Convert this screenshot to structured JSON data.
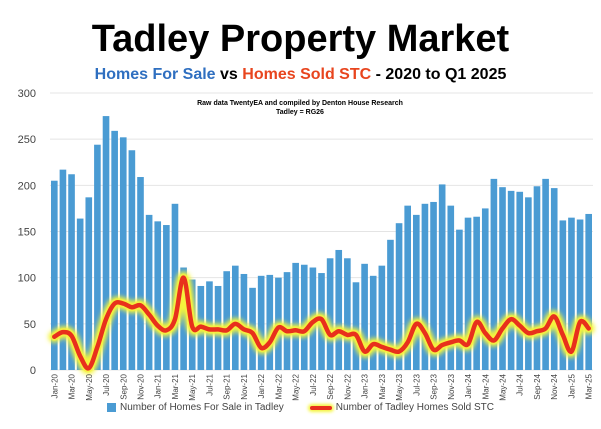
{
  "chart_data": {
    "type": "bar",
    "title": "Tadley Property Market",
    "subtitle": {
      "part1": "Homes For Sale",
      "part2": " vs ",
      "part3": "Homes Sold STC",
      "part4": " - 2020 to Q1 2025"
    },
    "note": [
      "Raw data TwentyEA and compiled by Denton House Research",
      "Tadley = RG26"
    ],
    "ylim": [
      0,
      300
    ],
    "yticks": [
      0,
      50,
      100,
      150,
      200,
      250,
      300
    ],
    "xticks": [
      "Jan-20",
      "Mar-20",
      "May-20",
      "Jul-20",
      "Sep-20",
      "Nov-20",
      "Jan-21",
      "Mar-21",
      "May-21",
      "Jul-21",
      "Sep-21",
      "Nov-21",
      "Jan-22",
      "Mar-22",
      "May-22",
      "Jul-22",
      "Sep-22",
      "Nov-22",
      "Jan-23",
      "Mar-23",
      "May-23",
      "Jul-23",
      "Sep-23",
      "Nov-23",
      "Jan-24",
      "Mar-24",
      "May-24",
      "Jul-24",
      "Sep-24",
      "Nov-24",
      "Jan-25",
      "Mar-25"
    ],
    "legend_position": "bottom",
    "series": [
      {
        "name": "Number of Homes For Sale in Tadley",
        "type": "bar",
        "color": "#4a9bd3",
        "values": [
          205,
          217,
          212,
          164,
          187,
          244,
          275,
          259,
          252,
          238,
          209,
          168,
          161,
          157,
          180,
          111,
          98,
          91,
          96,
          91,
          107,
          113,
          104,
          89,
          102,
          103,
          100,
          106,
          116,
          114,
          111,
          105,
          121,
          130,
          121,
          95,
          115,
          102,
          113,
          141,
          159,
          178,
          168,
          180,
          182,
          201,
          178,
          152,
          165,
          166,
          175,
          207,
          198,
          194,
          193,
          187,
          199,
          207,
          197,
          162,
          165,
          163,
          169
        ]
      },
      {
        "name": "Number of Tadley Homes Sold STC",
        "type": "line",
        "color": "#e8301c",
        "values": [
          36,
          41,
          37,
          15,
          2,
          25,
          55,
          72,
          72,
          68,
          70,
          60,
          48,
          43,
          55,
          100,
          47,
          47,
          44,
          44,
          43,
          50,
          44,
          40,
          24,
          30,
          46,
          42,
          43,
          42,
          52,
          55,
          38,
          42,
          38,
          38,
          20,
          28,
          25,
          22,
          20,
          30,
          50,
          40,
          22,
          27,
          30,
          32,
          28,
          52,
          40,
          32,
          45,
          55,
          48,
          40,
          42,
          45,
          58,
          38,
          20,
          52,
          45
        ]
      }
    ]
  }
}
